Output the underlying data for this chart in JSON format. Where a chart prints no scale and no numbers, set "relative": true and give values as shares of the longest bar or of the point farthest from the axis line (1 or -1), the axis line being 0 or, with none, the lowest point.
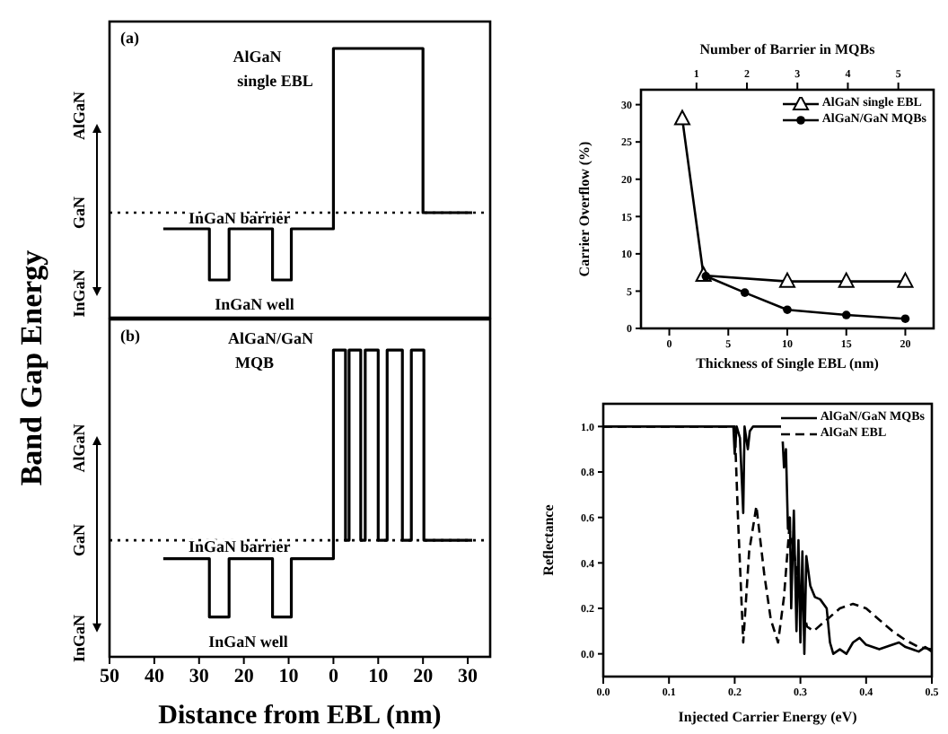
{
  "chart_data": [
    {
      "type": "step",
      "relative": true,
      "ylabel": "Band Gap Energy",
      "xlim": [
        -50,
        35
      ],
      "xticks": [
        {
          "value": -50,
          "label": null
        },
        {
          "value": -40,
          "label": null
        },
        {
          "value": -30,
          "label": null
        },
        {
          "value": -20,
          "label": null
        },
        {
          "value": -10,
          "label": null
        },
        {
          "value": 0,
          "label": null
        },
        {
          "value": 10,
          "label": null
        },
        {
          "value": 20,
          "label": null
        },
        {
          "value": 30,
          "label": null
        }
      ],
      "tick_labels": false,
      "series": [
        {
          "color": "#000000",
          "x": [
            -38,
            -27.7,
            -23.3,
            -13.6,
            -9.4,
            0,
            20,
            31
          ],
          "values": [
            0.33,
            0.14,
            0.33,
            0.14,
            0.33,
            1,
            0.39,
            0.39
          ]
        }
      ],
      "ref_lines": [
        {
          "axis": "y",
          "value": 0.39,
          "line_style": "dotted",
          "color": "#000000"
        }
      ],
      "annotations": [
        "(a)",
        "AlGaN",
        "single EBL",
        "InGaN barrier",
        "InGaN well",
        "AlGaN",
        "GaN",
        "InGaN"
      ]
    },
    {
      "type": "step",
      "relative": true,
      "xlabel": "Distance from EBL (nm)",
      "xlim": [
        -50,
        35
      ],
      "xticks": [
        {
          "value": -50,
          "label": "50"
        },
        {
          "value": -40,
          "label": "40"
        },
        {
          "value": -30,
          "label": "30"
        },
        {
          "value": -20,
          "label": "20"
        },
        {
          "value": -10,
          "label": "10"
        },
        0,
        10,
        20,
        30
      ],
      "tick_labels": "x",
      "series": [
        {
          "color": "#000000",
          "x": [
            -38,
            -27.7,
            -23.3,
            -13.6,
            -9.4,
            0,
            2.7,
            3.5,
            6.1,
            7.1,
            10,
            12,
            15.4,
            17.4,
            20.2,
            31
          ],
          "values": [
            0.32,
            0.13,
            0.32,
            0.13,
            0.32,
            1,
            0.38,
            1,
            0.38,
            1,
            0.38,
            1,
            0.38,
            1,
            0.38,
            0.38
          ]
        }
      ],
      "ref_lines": [
        {
          "axis": "y",
          "value": 0.38,
          "line_style": "dotted",
          "color": "#000000"
        }
      ],
      "annotations": [
        "(b)",
        "AlGaN/GaN",
        "MQB",
        "InGaN barrier",
        "InGaN well",
        "AlGaN",
        "GaN",
        "InGaN"
      ]
    },
    {
      "type": "line",
      "x2label": "Number of Barrier in MQBs",
      "xlabel": "Thickness of Single EBL (nm)",
      "ylabel": "Carrier Overflow (%)",
      "xlim": [
        -2.4,
        22.4
      ],
      "xticks": [
        0,
        5,
        10,
        15,
        20
      ],
      "x2lim": [
        -0.1,
        5.7
      ],
      "x2ticks": [
        1,
        2,
        3,
        4,
        5
      ],
      "ylim": [
        0,
        32
      ],
      "yticks": [
        0,
        5,
        10,
        15,
        20,
        25,
        30
      ],
      "legend": "top right",
      "series": [
        {
          "name": "AlGaN single EBL",
          "color": "#000000",
          "marker": "triangle",
          "x": [
            1.1,
            2.9,
            10,
            15,
            20
          ],
          "values": [
            28.1,
            7.1,
            6.3,
            6.3,
            6.3
          ]
        },
        {
          "name": "AlGaN/GaN MQBs",
          "color": "#000000",
          "marker": "circle",
          "x": [
            3.1,
            6.4,
            10,
            15,
            20
          ],
          "values": [
            7,
            4.8,
            2.5,
            1.8,
            1.3
          ]
        }
      ]
    },
    {
      "type": "line",
      "xlabel": "Injected Carrier Energy (eV)",
      "ylabel": "Reflectance",
      "xlim": [
        0,
        0.5
      ],
      "xticks": [
        {
          "value": 0,
          "label": "0.0"
        },
        0.1,
        0.2,
        0.3,
        0.4,
        0.5
      ],
      "ylim": [
        -0.1,
        1.1
      ],
      "yticks": [
        {
          "value": 0,
          "label": "0.0"
        },
        0.2,
        0.4,
        0.6,
        0.8,
        {
          "value": 1,
          "label": "1.0"
        }
      ],
      "legend": "top right",
      "series": [
        {
          "name": "AlGaN/GaN MQBs",
          "color": "#000000",
          "line_style": "solid",
          "x": [
            0,
            0.198,
            0.2,
            0.203,
            0.208,
            0.213,
            0.215,
            0.22,
            0.223,
            0.228,
            0.272,
            0.275,
            0.278,
            0.281,
            0.284,
            0.286,
            0.29,
            0.294,
            0.297,
            0.3,
            0.303,
            0.306,
            0.309,
            0.315,
            0.322,
            0.33,
            0.34,
            0.345,
            0.35,
            0.36,
            0.37,
            0.38,
            0.39,
            0.4,
            0.41,
            0.42,
            0.43,
            0.44,
            0.45,
            0.46,
            0.47,
            0.48,
            0.49,
            0.5
          ],
          "values": [
            1,
            1,
            0.88,
            1,
            0.95,
            0.62,
            1,
            0.9,
            0.98,
            1,
            1,
            0.82,
            0.9,
            0.55,
            0.6,
            0.2,
            0.63,
            0.1,
            0.5,
            0.05,
            0.45,
            0,
            0.43,
            0.3,
            0.25,
            0.24,
            0.2,
            0.05,
            0,
            0.02,
            0,
            0.05,
            0.07,
            0.04,
            0.03,
            0.02,
            0.03,
            0.04,
            0.05,
            0.03,
            0.02,
            0.01,
            0.03,
            0.01
          ]
        },
        {
          "name": "AlGaN EBL",
          "color": "#000000",
          "line_style": "dashed",
          "x": [
            0,
            0.2,
            0.205,
            0.213,
            0.222,
            0.233,
            0.245,
            0.255,
            0.266,
            0.275,
            0.283,
            0.29,
            0.3,
            0.31,
            0.32,
            0.34,
            0.36,
            0.38,
            0.4,
            0.42,
            0.44,
            0.46,
            0.48,
            0.5
          ],
          "values": [
            1,
            1,
            0.6,
            0.05,
            0.45,
            0.65,
            0.35,
            0.15,
            0.05,
            0.25,
            0.55,
            0.45,
            0.25,
            0.12,
            0.1,
            0.15,
            0.2,
            0.22,
            0.2,
            0.15,
            0.1,
            0.06,
            0.03,
            0.02
          ]
        }
      ]
    }
  ]
}
